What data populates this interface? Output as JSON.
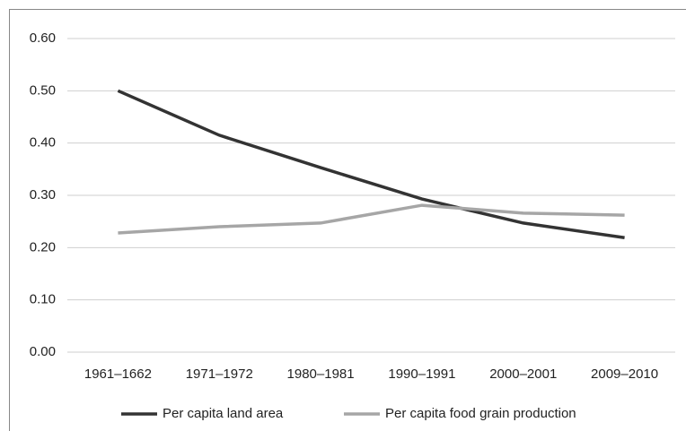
{
  "chart_data": {
    "type": "line",
    "categories": [
      "1961–1662",
      "1971–1972",
      "1980–1981",
      "1990–1991",
      "2000–2001",
      "2009–2010"
    ],
    "series": [
      {
        "name": "Per capita land area",
        "color": "#333333",
        "values": [
          0.5,
          0.415,
          0.353,
          0.293,
          0.247,
          0.219
        ]
      },
      {
        "name": "Per capita food grain production",
        "color": "#a6a6a6",
        "values": [
          0.228,
          0.24,
          0.247,
          0.281,
          0.266,
          0.262
        ]
      }
    ],
    "ylim": [
      0,
      0.6
    ],
    "yticks": [
      {
        "value": 0,
        "label": "0.00"
      },
      {
        "value": 0.1,
        "label": "0.10"
      },
      {
        "value": 0.2,
        "label": "0.20"
      },
      {
        "value": 0.3,
        "label": "0.30"
      },
      {
        "value": 0.4,
        "label": "0.40"
      },
      {
        "value": 0.5,
        "label": "0.50"
      },
      {
        "value": 0.6,
        "label": "0.60"
      }
    ],
    "grid": true,
    "legend": "bottom"
  }
}
